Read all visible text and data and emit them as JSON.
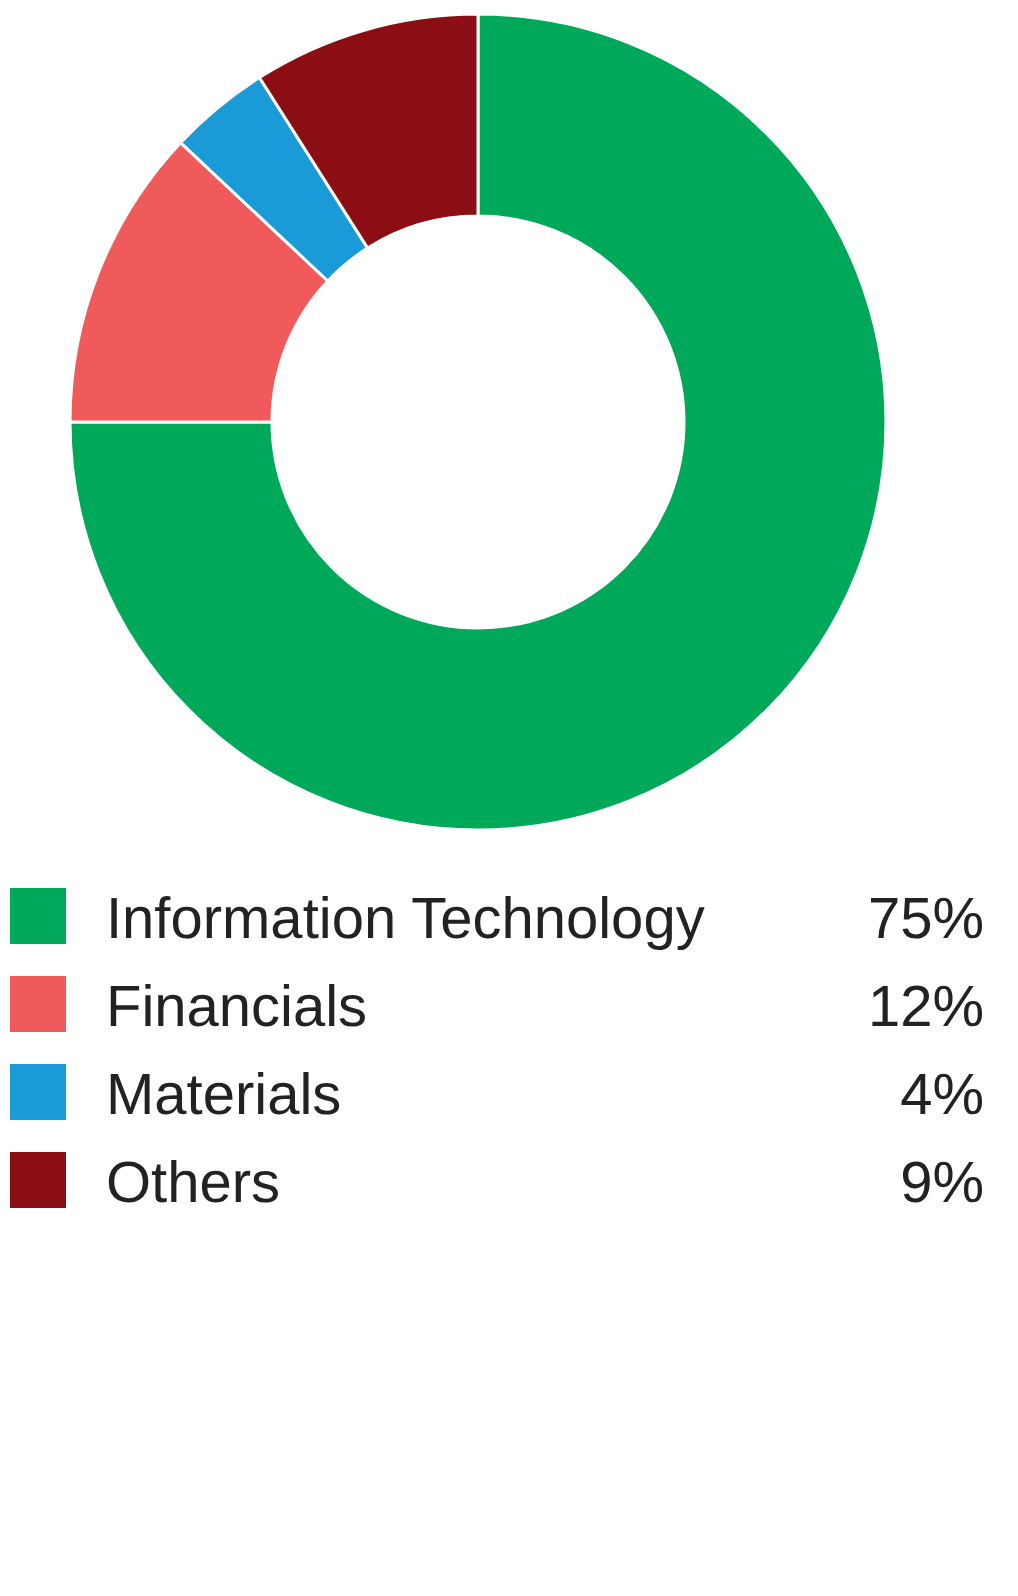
{
  "chart_data": {
    "type": "donut",
    "categories": [
      "Information Technology",
      "Financials",
      "Materials",
      "Others"
    ],
    "values": [
      75,
      12,
      4,
      9
    ],
    "colors": [
      "#00a859",
      "#f05a5a",
      "#1a9ad6",
      "#8b0e14"
    ],
    "legend": "bottom",
    "value_labels": [
      "75%",
      "12%",
      "4%",
      "9%"
    ]
  }
}
